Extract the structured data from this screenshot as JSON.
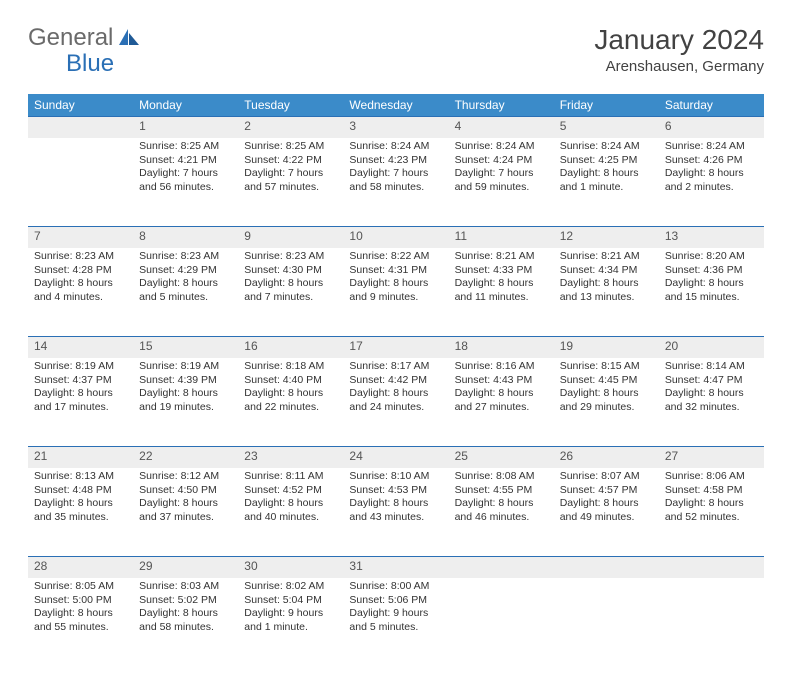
{
  "logo": {
    "text1": "General",
    "text2": "Blue"
  },
  "title": "January 2024",
  "location": "Arenshausen, Germany",
  "colors": {
    "header_bg": "#3b8bc9",
    "header_text": "#ffffff",
    "daynum_bg": "#eeeeee",
    "daynum_border": "#2a6fb5",
    "text": "#333333",
    "logo_gray": "#6a6a6a",
    "logo_blue": "#2a6fb5"
  },
  "weekdays": [
    "Sunday",
    "Monday",
    "Tuesday",
    "Wednesday",
    "Thursday",
    "Friday",
    "Saturday"
  ],
  "weeks": [
    {
      "nums": [
        "",
        "1",
        "2",
        "3",
        "4",
        "5",
        "6"
      ],
      "cells": [
        {},
        {
          "sunrise": "Sunrise: 8:25 AM",
          "sunset": "Sunset: 4:21 PM",
          "day1": "Daylight: 7 hours",
          "day2": "and 56 minutes."
        },
        {
          "sunrise": "Sunrise: 8:25 AM",
          "sunset": "Sunset: 4:22 PM",
          "day1": "Daylight: 7 hours",
          "day2": "and 57 minutes."
        },
        {
          "sunrise": "Sunrise: 8:24 AM",
          "sunset": "Sunset: 4:23 PM",
          "day1": "Daylight: 7 hours",
          "day2": "and 58 minutes."
        },
        {
          "sunrise": "Sunrise: 8:24 AM",
          "sunset": "Sunset: 4:24 PM",
          "day1": "Daylight: 7 hours",
          "day2": "and 59 minutes."
        },
        {
          "sunrise": "Sunrise: 8:24 AM",
          "sunset": "Sunset: 4:25 PM",
          "day1": "Daylight: 8 hours",
          "day2": "and 1 minute."
        },
        {
          "sunrise": "Sunrise: 8:24 AM",
          "sunset": "Sunset: 4:26 PM",
          "day1": "Daylight: 8 hours",
          "day2": "and 2 minutes."
        }
      ]
    },
    {
      "nums": [
        "7",
        "8",
        "9",
        "10",
        "11",
        "12",
        "13"
      ],
      "cells": [
        {
          "sunrise": "Sunrise: 8:23 AM",
          "sunset": "Sunset: 4:28 PM",
          "day1": "Daylight: 8 hours",
          "day2": "and 4 minutes."
        },
        {
          "sunrise": "Sunrise: 8:23 AM",
          "sunset": "Sunset: 4:29 PM",
          "day1": "Daylight: 8 hours",
          "day2": "and 5 minutes."
        },
        {
          "sunrise": "Sunrise: 8:23 AM",
          "sunset": "Sunset: 4:30 PM",
          "day1": "Daylight: 8 hours",
          "day2": "and 7 minutes."
        },
        {
          "sunrise": "Sunrise: 8:22 AM",
          "sunset": "Sunset: 4:31 PM",
          "day1": "Daylight: 8 hours",
          "day2": "and 9 minutes."
        },
        {
          "sunrise": "Sunrise: 8:21 AM",
          "sunset": "Sunset: 4:33 PM",
          "day1": "Daylight: 8 hours",
          "day2": "and 11 minutes."
        },
        {
          "sunrise": "Sunrise: 8:21 AM",
          "sunset": "Sunset: 4:34 PM",
          "day1": "Daylight: 8 hours",
          "day2": "and 13 minutes."
        },
        {
          "sunrise": "Sunrise: 8:20 AM",
          "sunset": "Sunset: 4:36 PM",
          "day1": "Daylight: 8 hours",
          "day2": "and 15 minutes."
        }
      ]
    },
    {
      "nums": [
        "14",
        "15",
        "16",
        "17",
        "18",
        "19",
        "20"
      ],
      "cells": [
        {
          "sunrise": "Sunrise: 8:19 AM",
          "sunset": "Sunset: 4:37 PM",
          "day1": "Daylight: 8 hours",
          "day2": "and 17 minutes."
        },
        {
          "sunrise": "Sunrise: 8:19 AM",
          "sunset": "Sunset: 4:39 PM",
          "day1": "Daylight: 8 hours",
          "day2": "and 19 minutes."
        },
        {
          "sunrise": "Sunrise: 8:18 AM",
          "sunset": "Sunset: 4:40 PM",
          "day1": "Daylight: 8 hours",
          "day2": "and 22 minutes."
        },
        {
          "sunrise": "Sunrise: 8:17 AM",
          "sunset": "Sunset: 4:42 PM",
          "day1": "Daylight: 8 hours",
          "day2": "and 24 minutes."
        },
        {
          "sunrise": "Sunrise: 8:16 AM",
          "sunset": "Sunset: 4:43 PM",
          "day1": "Daylight: 8 hours",
          "day2": "and 27 minutes."
        },
        {
          "sunrise": "Sunrise: 8:15 AM",
          "sunset": "Sunset: 4:45 PM",
          "day1": "Daylight: 8 hours",
          "day2": "and 29 minutes."
        },
        {
          "sunrise": "Sunrise: 8:14 AM",
          "sunset": "Sunset: 4:47 PM",
          "day1": "Daylight: 8 hours",
          "day2": "and 32 minutes."
        }
      ]
    },
    {
      "nums": [
        "21",
        "22",
        "23",
        "24",
        "25",
        "26",
        "27"
      ],
      "cells": [
        {
          "sunrise": "Sunrise: 8:13 AM",
          "sunset": "Sunset: 4:48 PM",
          "day1": "Daylight: 8 hours",
          "day2": "and 35 minutes."
        },
        {
          "sunrise": "Sunrise: 8:12 AM",
          "sunset": "Sunset: 4:50 PM",
          "day1": "Daylight: 8 hours",
          "day2": "and 37 minutes."
        },
        {
          "sunrise": "Sunrise: 8:11 AM",
          "sunset": "Sunset: 4:52 PM",
          "day1": "Daylight: 8 hours",
          "day2": "and 40 minutes."
        },
        {
          "sunrise": "Sunrise: 8:10 AM",
          "sunset": "Sunset: 4:53 PM",
          "day1": "Daylight: 8 hours",
          "day2": "and 43 minutes."
        },
        {
          "sunrise": "Sunrise: 8:08 AM",
          "sunset": "Sunset: 4:55 PM",
          "day1": "Daylight: 8 hours",
          "day2": "and 46 minutes."
        },
        {
          "sunrise": "Sunrise: 8:07 AM",
          "sunset": "Sunset: 4:57 PM",
          "day1": "Daylight: 8 hours",
          "day2": "and 49 minutes."
        },
        {
          "sunrise": "Sunrise: 8:06 AM",
          "sunset": "Sunset: 4:58 PM",
          "day1": "Daylight: 8 hours",
          "day2": "and 52 minutes."
        }
      ]
    },
    {
      "nums": [
        "28",
        "29",
        "30",
        "31",
        "",
        "",
        ""
      ],
      "cells": [
        {
          "sunrise": "Sunrise: 8:05 AM",
          "sunset": "Sunset: 5:00 PM",
          "day1": "Daylight: 8 hours",
          "day2": "and 55 minutes."
        },
        {
          "sunrise": "Sunrise: 8:03 AM",
          "sunset": "Sunset: 5:02 PM",
          "day1": "Daylight: 8 hours",
          "day2": "and 58 minutes."
        },
        {
          "sunrise": "Sunrise: 8:02 AM",
          "sunset": "Sunset: 5:04 PM",
          "day1": "Daylight: 9 hours",
          "day2": "and 1 minute."
        },
        {
          "sunrise": "Sunrise: 8:00 AM",
          "sunset": "Sunset: 5:06 PM",
          "day1": "Daylight: 9 hours",
          "day2": "and 5 minutes."
        },
        {},
        {},
        {}
      ]
    }
  ]
}
